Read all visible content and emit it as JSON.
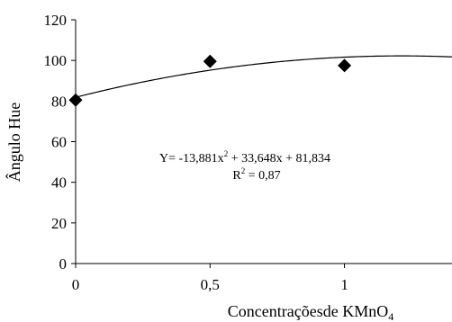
{
  "chart_data": {
    "type": "scatter",
    "title": "",
    "xlabel": "Concentraçõesde KMnO",
    "xlabel_subscript": "4",
    "ylabel": "Ângulo Hue",
    "xlim": [
      0,
      1.4
    ],
    "ylim": [
      0,
      120
    ],
    "x_ticks": [
      0,
      0.5,
      1
    ],
    "x_tick_labels": [
      "0",
      "0,5",
      "1"
    ],
    "y_ticks": [
      0,
      20,
      40,
      60,
      80,
      100,
      120
    ],
    "y_tick_labels": [
      "0",
      "20",
      "40",
      "60",
      "80",
      "100",
      "120"
    ],
    "grid": false,
    "series": [
      {
        "marker": "diamond",
        "color": "#000000",
        "points": [
          {
            "x": 0,
            "y": 80.5
          },
          {
            "x": 0.5,
            "y": 99.5
          },
          {
            "x": 1,
            "y": 97.5
          }
        ]
      }
    ],
    "trendline": {
      "type": "polynomial",
      "coefficients": {
        "a": -13.881,
        "b": 33.648,
        "c": 81.834
      },
      "color": "#000000"
    },
    "annotations": {
      "equation": {
        "prefix": "Y= -13,881x",
        "sup": "2",
        "suffix": " + 33,648x + 81,834"
      },
      "r2": {
        "prefix": "R",
        "sup": "2",
        "suffix": " = 0,87"
      }
    }
  }
}
